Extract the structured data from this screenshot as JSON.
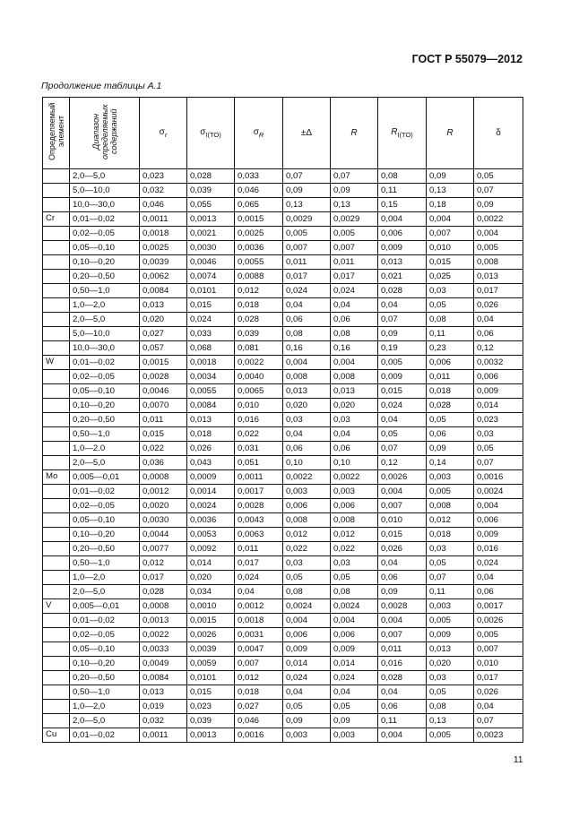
{
  "header": {
    "doc_title": "ГОСТ Р 55079—2012",
    "caption": "Продолжение таблицы А.1"
  },
  "columns": {
    "element": "Определяемый элемент",
    "range": "Диапазон определяемых содержаний",
    "c1": {
      "sym": "σ",
      "sub": "r"
    },
    "c2": {
      "sym": "σ",
      "sub": "I(TO)"
    },
    "c3": {
      "sym": "σ",
      "sub": "R"
    },
    "c4": {
      "sym": "±Δ",
      "sub": ""
    },
    "c5": {
      "sym": "R",
      "sub": ""
    },
    "c6": {
      "sym": "R",
      "sub": "I(TO)"
    },
    "c7": {
      "sym": "R",
      "sub": ""
    },
    "c8": {
      "sym": "δ",
      "sub": ""
    }
  },
  "rows": [
    [
      "",
      "2,0—5,0",
      "0,023",
      "0,028",
      "0,033",
      "0,07",
      "0,07",
      "0,08",
      "0,09",
      "0,05"
    ],
    [
      "",
      "5,0—10,0",
      "0,032",
      "0,039",
      "0,046",
      "0,09",
      "0,09",
      "0,11",
      "0,13",
      "0,07"
    ],
    [
      "",
      "10,0—30,0",
      "0,046",
      "0,055",
      "0,065",
      "0,13",
      "0,13",
      "0,15",
      "0,18",
      "0,09"
    ],
    [
      "Cr",
      "0,01—0,02",
      "0,0011",
      "0,0013",
      "0,0015",
      "0,0029",
      "0,0029",
      "0,004",
      "0,004",
      "0,0022"
    ],
    [
      "",
      "0,02—0,05",
      "0,0018",
      "0,0021",
      "0,0025",
      "0,005",
      "0,005",
      "0,006",
      "0,007",
      "0,004"
    ],
    [
      "",
      "0,05—0,10",
      "0,0025",
      "0,0030",
      "0,0036",
      "0,007",
      "0,007",
      "0,009",
      "0,010",
      "0,005"
    ],
    [
      "",
      "0,10—0,20",
      "0,0039",
      "0,0046",
      "0,0055",
      "0,011",
      "0,011",
      "0,013",
      "0,015",
      "0,008"
    ],
    [
      "",
      "0,20—0,50",
      "0,0062",
      "0,0074",
      "0,0088",
      "0,017",
      "0,017",
      "0,021",
      "0,025",
      "0,013"
    ],
    [
      "",
      "0,50—1,0",
      "0,0084",
      "0,0101",
      "0,012",
      "0,024",
      "0,024",
      "0,028",
      "0,03",
      "0,017"
    ],
    [
      "",
      "1,0—2,0",
      "0,013",
      "0,015",
      "0,018",
      "0,04",
      "0,04",
      "0,04",
      "0,05",
      "0,026"
    ],
    [
      "",
      "2,0—5,0",
      "0,020",
      "0,024",
      "0,028",
      "0,06",
      "0,06",
      "0,07",
      "0,08",
      "0,04"
    ],
    [
      "",
      "5,0—10,0",
      "0,027",
      "0,033",
      "0,039",
      "0,08",
      "0,08",
      "0,09",
      "0,11",
      "0,06"
    ],
    [
      "",
      "10,0—30,0",
      "0,057",
      "0,068",
      "0,081",
      "0,16",
      "0,16",
      "0,19",
      "0,23",
      "0,12"
    ],
    [
      "W",
      "0,01—0,02",
      "0,0015",
      "0,0018",
      "0,0022",
      "0,004",
      "0,004",
      "0,005",
      "0,006",
      "0,0032"
    ],
    [
      "",
      "0,02—0,05",
      "0,0028",
      "0,0034",
      "0,0040",
      "0,008",
      "0,008",
      "0,009",
      "0,011",
      "0,006"
    ],
    [
      "",
      "0,05—0,10",
      "0,0046",
      "0,0055",
      "0,0065",
      "0,013",
      "0,013",
      "0,015",
      "0,018",
      "0,009"
    ],
    [
      "",
      "0,10—0,20",
      "0,0070",
      "0,0084",
      "0,010",
      "0,020",
      "0,020",
      "0,024",
      "0,028",
      "0,014"
    ],
    [
      "",
      "0,20—0,50",
      "0,011",
      "0,013",
      "0,016",
      "0,03",
      "0,03",
      "0,04",
      "0,05",
      "0,023"
    ],
    [
      "",
      "0,50—1,0",
      "0,015",
      "0,018",
      "0,022",
      "0,04",
      "0,04",
      "0,05",
      "0,06",
      "0,03"
    ],
    [
      "",
      "1,0—2.0",
      "0,022",
      "0,026",
      "0,031",
      "0,06",
      "0,06",
      "0,07",
      "0,09",
      "0,05"
    ],
    [
      "",
      "2,0—5,0",
      "0,036",
      "0,043",
      "0,051",
      "0,10",
      "0,10",
      "0,12",
      "0,14",
      "0,07"
    ],
    [
      "Mo",
      "0,005—0,01",
      "0,0008",
      "0,0009",
      "0,0011",
      "0,0022",
      "0,0022",
      "0,0026",
      "0,003",
      "0,0016"
    ],
    [
      "",
      "0,01—0,02",
      "0,0012",
      "0,0014",
      "0,0017",
      "0,003",
      "0,003",
      "0,004",
      "0,005",
      "0,0024"
    ],
    [
      "",
      "0,02—0,05",
      "0,0020",
      "0,0024",
      "0,0028",
      "0,006",
      "0,006",
      "0,007",
      "0,008",
      "0,004"
    ],
    [
      "",
      "0,05—0,10",
      "0,0030",
      "0,0036",
      "0,0043",
      "0,008",
      "0,008",
      "0,010",
      "0,012",
      "0,006"
    ],
    [
      "",
      "0,10—0,20",
      "0,0044",
      "0,0053",
      "0,0063",
      "0,012",
      "0,012",
      "0,015",
      "0,018",
      "0,009"
    ],
    [
      "",
      "0,20—0,50",
      "0,0077",
      "0,0092",
      "0,011",
      "0,022",
      "0,022",
      "0,026",
      "0,03",
      "0,016"
    ],
    [
      "",
      "0,50—1,0",
      "0,012",
      "0,014",
      "0,017",
      "0,03",
      "0,03",
      "0,04",
      "0,05",
      "0,024"
    ],
    [
      "",
      "1,0—2,0",
      "0,017",
      "0,020",
      "0,024",
      "0,05",
      "0,05",
      "0,06",
      "0,07",
      "0,04"
    ],
    [
      "",
      "2,0—5,0",
      "0,028",
      "0,034",
      "0,04",
      "0,08",
      "0,08",
      "0,09",
      "0,11",
      "0,06"
    ],
    [
      "V",
      "0,005—0,01",
      "0,0008",
      "0,0010",
      "0,0012",
      "0,0024",
      "0,0024",
      "0,0028",
      "0,003",
      "0,0017"
    ],
    [
      "",
      "0,01—0,02",
      "0,0013",
      "0,0015",
      "0,0018",
      "0,004",
      "0,004",
      "0,004",
      "0,005",
      "0,0026"
    ],
    [
      "",
      "0,02—0,05",
      "0,0022",
      "0,0026",
      "0,0031",
      "0,006",
      "0,006",
      "0,007",
      "0,009",
      "0,005"
    ],
    [
      "",
      "0,05—0,10",
      "0,0033",
      "0,0039",
      "0,0047",
      "0,009",
      "0,009",
      "0,011",
      "0,013",
      "0,007"
    ],
    [
      "",
      "0,10—0,20",
      "0,0049",
      "0,0059",
      "0,007",
      "0,014",
      "0,014",
      "0,016",
      "0,020",
      "0,010"
    ],
    [
      "",
      "0,20—0,50",
      "0,0084",
      "0,0101",
      "0,012",
      "0,024",
      "0,024",
      "0,028",
      "0,03",
      "0,017"
    ],
    [
      "",
      "0,50—1,0",
      "0,013",
      "0,015",
      "0,018",
      "0,04",
      "0,04",
      "0,04",
      "0,05",
      "0,026"
    ],
    [
      "",
      "1,0—2,0",
      "0,019",
      "0,023",
      "0,027",
      "0,05",
      "0,05",
      "0,06",
      "0,08",
      "0,04"
    ],
    [
      "",
      "2,0—5,0",
      "0,032",
      "0,039",
      "0,046",
      "0,09",
      "0,09",
      "0,11",
      "0,13",
      "0,07"
    ],
    [
      "Cu",
      "0,01—0,02",
      "0,0011",
      "0,0013",
      "0,0016",
      "0,003",
      "0,003",
      "0,004",
      "0,005",
      "0,0023"
    ]
  ],
  "footer": {
    "page_number": "11"
  }
}
